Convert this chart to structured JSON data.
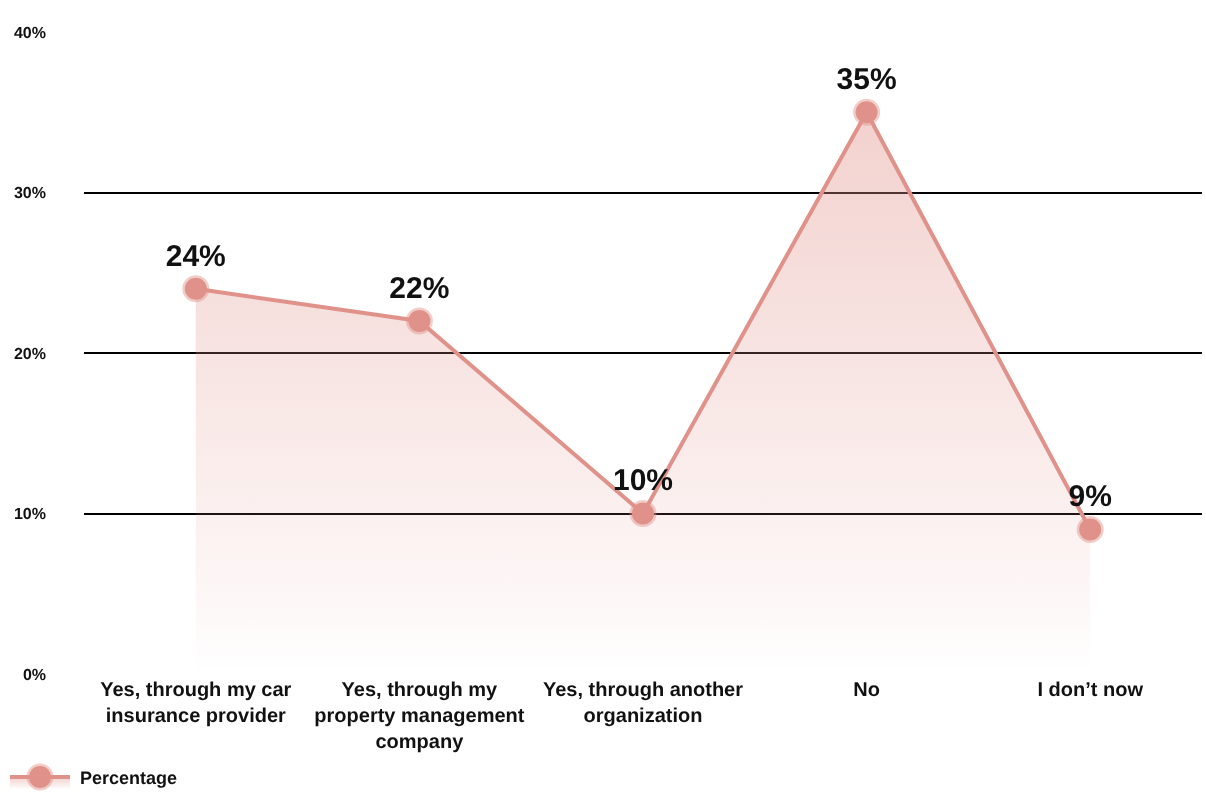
{
  "chart_data": {
    "type": "area",
    "categories": [
      "Yes, through my car insurance provider",
      "Yes, through my property management company",
      "Yes, through another organization",
      "No",
      "I don’t now"
    ],
    "series": [
      {
        "name": "Percentage",
        "color": "#e0928a",
        "values": [
          24,
          22,
          10,
          35,
          9
        ],
        "value_labels": [
          "24%",
          "22%",
          "10%",
          "35%",
          "9%"
        ]
      }
    ],
    "ylim": [
      0,
      40
    ],
    "yticks": [
      {
        "value": 0,
        "label": "0%"
      },
      {
        "value": 10,
        "label": "10%"
      },
      {
        "value": 20,
        "label": "20%"
      },
      {
        "value": 30,
        "label": "30%"
      },
      {
        "value": 40,
        "label": "40%"
      }
    ],
    "grid": "y",
    "legend": "bottom left",
    "marker": "circle"
  }
}
